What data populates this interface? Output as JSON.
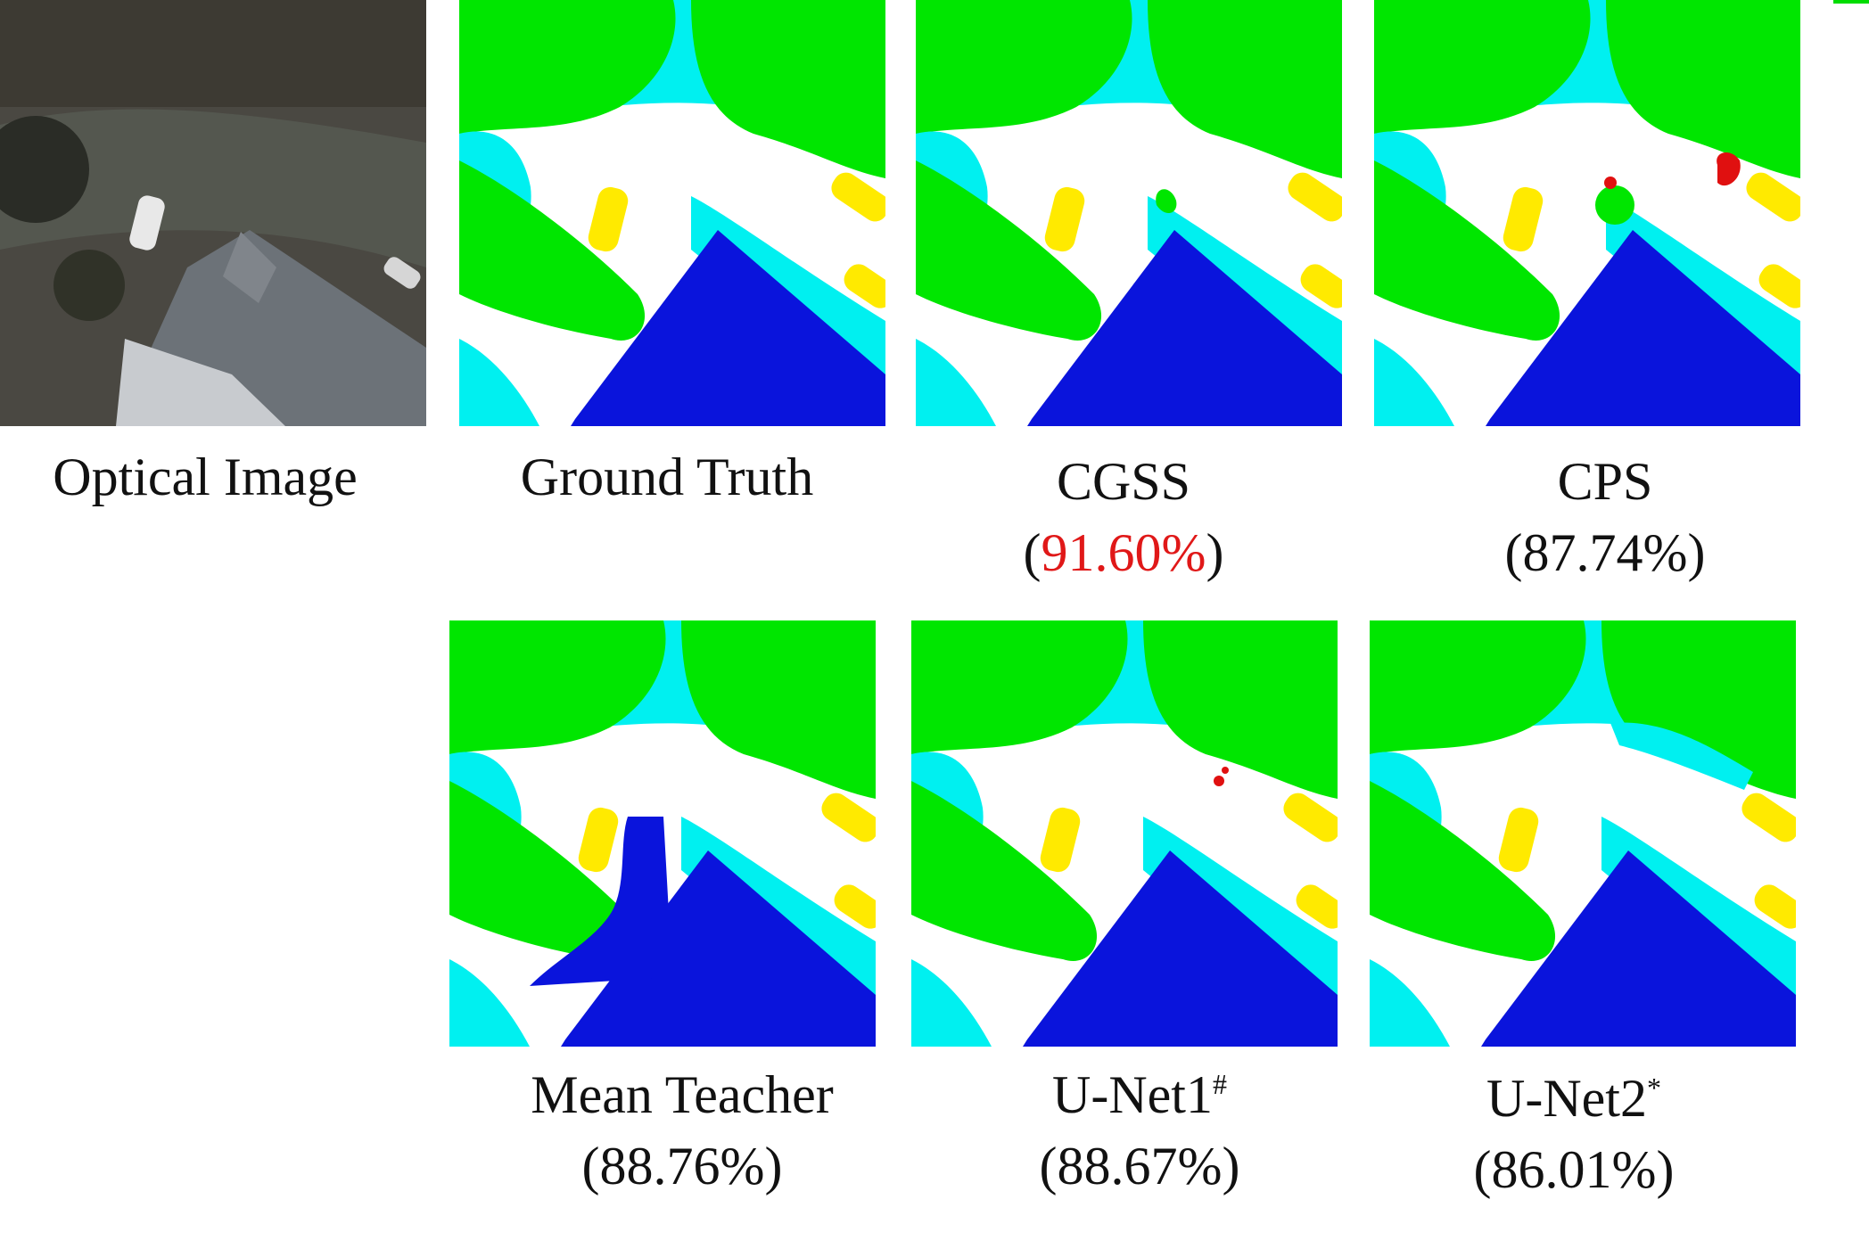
{
  "colors": {
    "green": "#00e600",
    "cyan": "#00f0f0",
    "white": "#ffffff",
    "yellow": "#ffea00",
    "blue": "#0a14dc",
    "red": "#e01010"
  },
  "panels": [
    {
      "id": "optical",
      "caption": "Optical Image",
      "score": ""
    },
    {
      "id": "ground-truth",
      "caption": "Ground Truth",
      "score": ""
    },
    {
      "id": "cgss",
      "caption": "CGSS",
      "score": "91.60%",
      "best": true
    },
    {
      "id": "cps",
      "caption": "CPS",
      "score": "87.74%"
    },
    {
      "id": "mean-teacher",
      "caption": "Mean Teacher",
      "score": "88.76%"
    },
    {
      "id": "unet1",
      "caption": "U-Net1",
      "sup": "#",
      "score": "88.67%"
    },
    {
      "id": "unet2",
      "caption": "U-Net2",
      "sup": "*",
      "score": "86.01%"
    }
  ],
  "captions": {
    "optical": "Optical Image",
    "ground_truth": "Ground Truth",
    "cgss": "CGSS",
    "cgss_score": "91.60%",
    "cps": "CPS",
    "cps_score": "87.74%",
    "mean_teacher": "Mean Teacher",
    "mean_teacher_score": "88.76%",
    "unet1": "U-Net1",
    "unet1_sup": "#",
    "unet1_score": "88.67%",
    "unet2": "U-Net2",
    "unet2_sup": "*",
    "unet2_score": "86.01%"
  },
  "paren_open": "(",
  "paren_close": ")"
}
